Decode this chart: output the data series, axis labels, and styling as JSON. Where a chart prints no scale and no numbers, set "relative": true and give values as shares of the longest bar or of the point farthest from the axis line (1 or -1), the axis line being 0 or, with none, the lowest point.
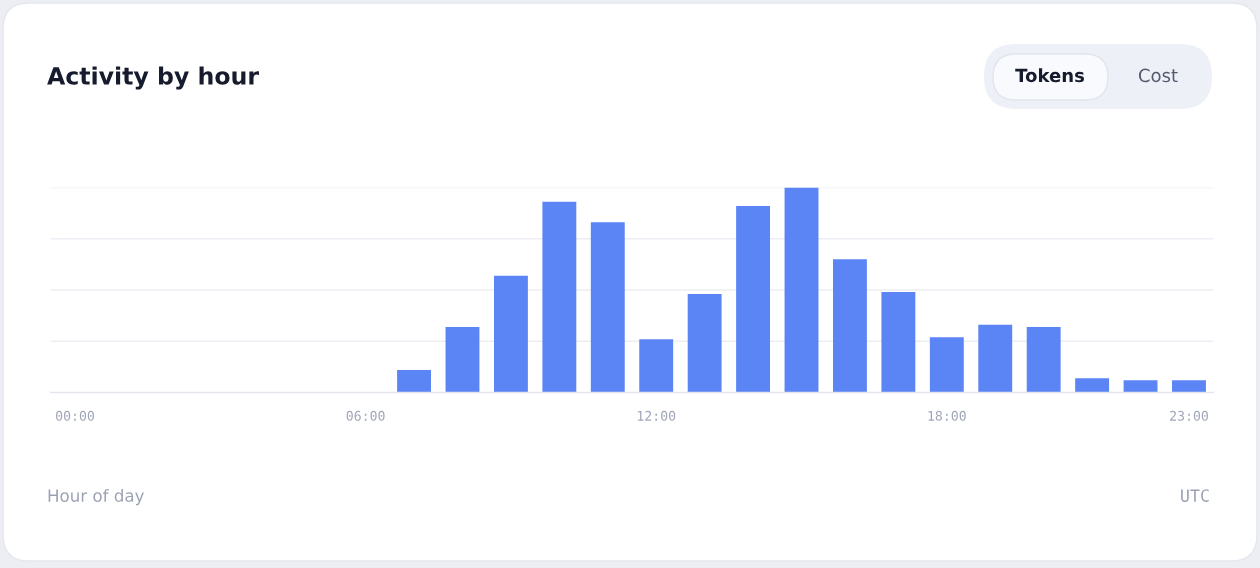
{
  "chart_data": {
    "type": "bar",
    "title": "Activity by hour",
    "xlabel": "Hour of day",
    "annotations": [
      "Tokens",
      "Cost",
      "UTC"
    ],
    "categories": [
      "00:00",
      null,
      null,
      null,
      null,
      null,
      "06:00",
      null,
      null,
      null,
      null,
      null,
      "12:00",
      null,
      null,
      null,
      null,
      null,
      "18:00",
      null,
      null,
      null,
      null,
      "23:00"
    ],
    "values": [
      0,
      0,
      0,
      0,
      0,
      0,
      0,
      0.11,
      0.32,
      0.57,
      0.93,
      0.83,
      0.26,
      0.48,
      0.91,
      1,
      0.65,
      0.49,
      0.27,
      0.33,
      0.32,
      0.07,
      0.06,
      0.06
    ],
    "color": "#5b85f4",
    "relative": true,
    "grid": "y"
  }
}
